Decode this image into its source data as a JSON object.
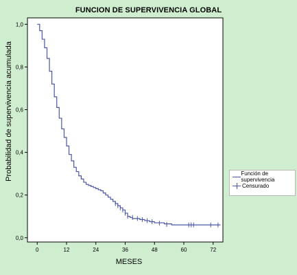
{
  "chart_data": {
    "type": "line",
    "title": "FUNCION DE SUPERVIVENCIA GLOBAL",
    "xlabel": "MESES",
    "ylabel": "Probabilidad de supervivencia acumulada",
    "xlim": [
      -4,
      76
    ],
    "ylim": [
      -0.02,
      1.03
    ],
    "x_ticks": [
      0,
      12,
      24,
      36,
      48,
      60,
      72
    ],
    "x_tick_labels": [
      "0",
      "12",
      "24",
      "36",
      "48",
      "60",
      "72"
    ],
    "y_ticks": [
      0.0,
      0.2,
      0.4,
      0.6,
      0.8,
      1.0
    ],
    "y_tick_labels": [
      "0,0",
      "0,2",
      "0,4",
      "0,6",
      "0,8",
      "1,0"
    ],
    "grid": false,
    "legend_placement": "right",
    "series": [
      {
        "name": "Función de supervivencia",
        "color": "#4a55a6",
        "x": [
          0,
          1,
          2,
          3,
          4,
          5,
          6,
          7,
          8,
          9,
          10,
          11,
          12,
          13,
          14,
          15,
          16,
          17,
          18,
          19,
          20,
          21,
          22,
          23,
          24,
          25,
          26,
          27,
          28,
          29,
          30,
          31,
          32,
          33,
          34,
          35,
          36,
          37,
          38,
          39,
          40,
          42,
          44,
          46,
          48,
          52,
          55,
          60,
          65,
          70,
          75
        ],
        "y": [
          1.0,
          0.97,
          0.93,
          0.89,
          0.84,
          0.78,
          0.72,
          0.66,
          0.61,
          0.56,
          0.51,
          0.47,
          0.43,
          0.39,
          0.36,
          0.33,
          0.31,
          0.29,
          0.275,
          0.26,
          0.25,
          0.245,
          0.24,
          0.235,
          0.23,
          0.225,
          0.22,
          0.21,
          0.2,
          0.19,
          0.18,
          0.17,
          0.16,
          0.15,
          0.14,
          0.13,
          0.115,
          0.1,
          0.095,
          0.09,
          0.09,
          0.085,
          0.08,
          0.075,
          0.07,
          0.065,
          0.06,
          0.06,
          0.06,
          0.06,
          0.06
        ]
      },
      {
        "name": "Censurado",
        "color": "#4a55a6",
        "x": [
          32,
          33,
          34,
          35,
          36,
          37,
          39,
          41,
          43,
          45,
          47,
          50,
          53,
          62,
          63,
          64,
          71,
          74
        ],
        "y": [
          0.16,
          0.15,
          0.14,
          0.13,
          0.115,
          0.1,
          0.095,
          0.09,
          0.085,
          0.08,
          0.075,
          0.068,
          0.062,
          0.06,
          0.06,
          0.06,
          0.06,
          0.06
        ]
      }
    ]
  },
  "colors": {
    "background": "#cfeed0",
    "plot_area": "#ffffff",
    "series_line": "#4a55a6"
  }
}
